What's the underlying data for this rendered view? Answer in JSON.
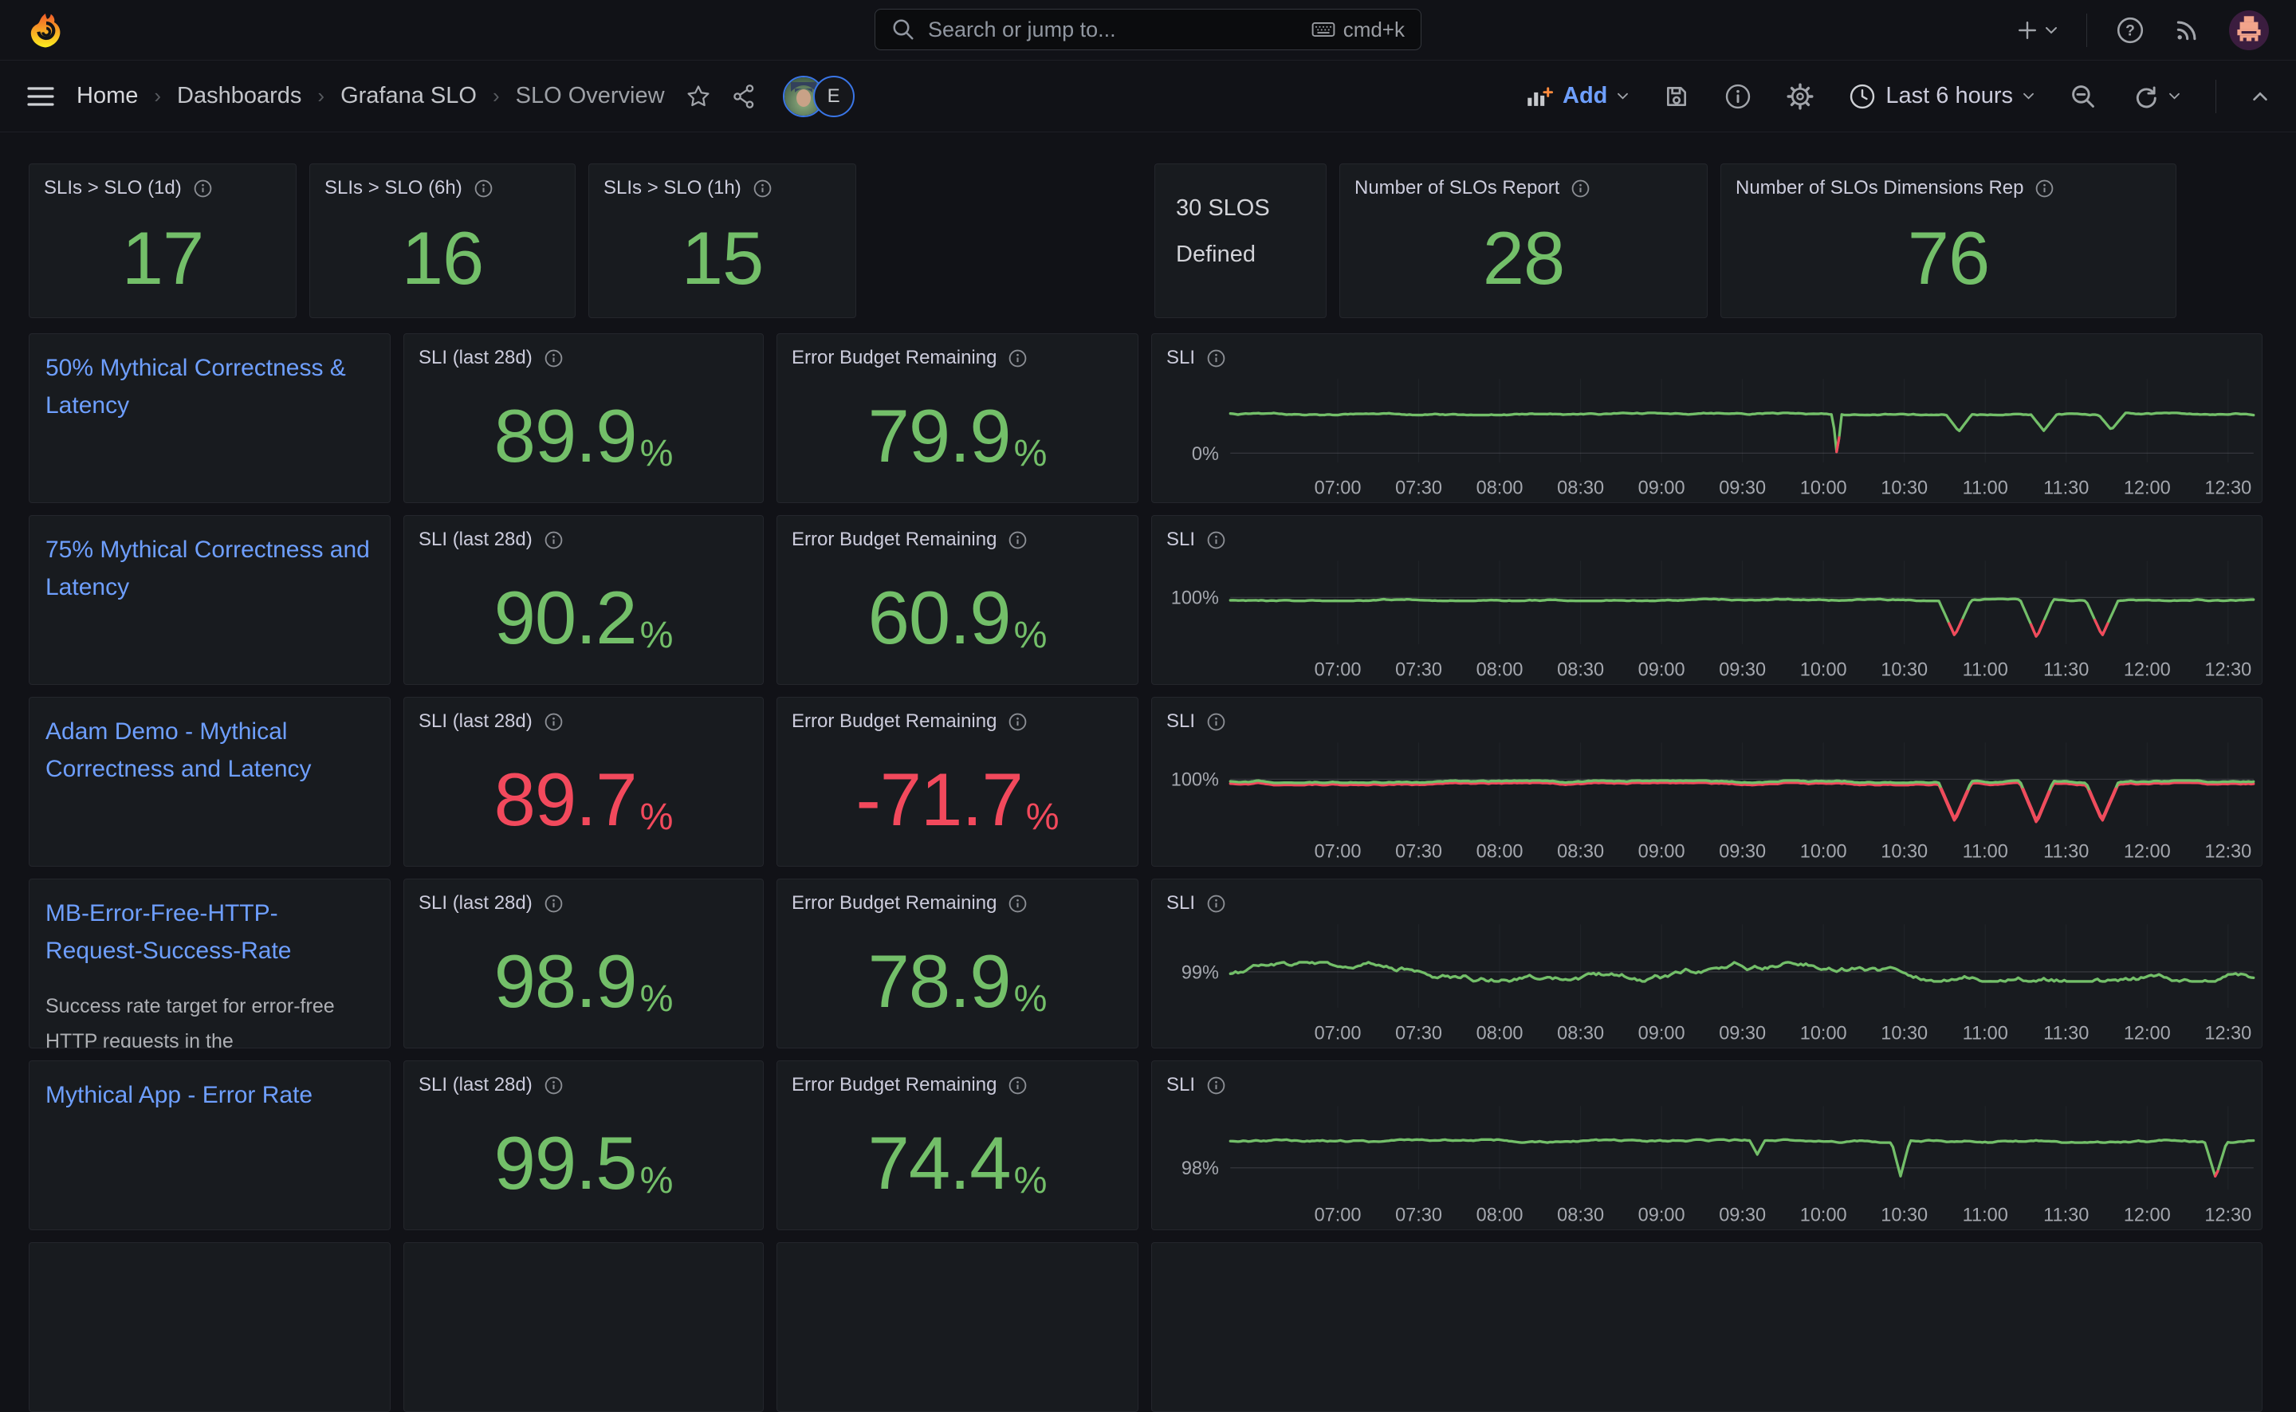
{
  "topnav": {
    "search_placeholder": "Search or jump to...",
    "search_shortcut": "cmd+k"
  },
  "breadcrumb": {
    "items": [
      "Home",
      "Dashboards",
      "Grafana SLO",
      "SLO Overview"
    ],
    "collaborator_initial": "E"
  },
  "toolbar": {
    "add_label": "Add",
    "time_range": "Last 6 hours"
  },
  "labels": {
    "sli_title": "SLI (last 28d)",
    "ebr_title": "Error Budget Remaining",
    "chart_title": "SLI",
    "unit": "%"
  },
  "colors": {
    "green": "#73BF69",
    "red": "#F2495C",
    "link": "#6E9FFF"
  },
  "stats": [
    {
      "title": "SLIs > SLO (1d)",
      "value": "17"
    },
    {
      "title": "SLIs > SLO (6h)",
      "value": "16"
    },
    {
      "title": "SLIs > SLO (1h)",
      "value": "15"
    }
  ],
  "summary": {
    "text_panel": {
      "line1": "30 SLOS",
      "line2": "Defined"
    },
    "stats": [
      {
        "title": "Number of SLOs Report",
        "value": "28"
      },
      {
        "title": "Number of SLOs Dimensions Rep",
        "value": "76"
      }
    ]
  },
  "slo_rows": [
    {
      "name": "50% Mythical Correctness & Latency",
      "description": "",
      "sli": "89.9",
      "ebr": "79.9",
      "value_color": "#73BF69"
    },
    {
      "name": "75% Mythical Correctness and Latency",
      "description": "",
      "sli": "90.2",
      "ebr": "60.9",
      "value_color": "#73BF69"
    },
    {
      "name": "Adam Demo - Mythical Correctness and Latency",
      "description": "",
      "sli": "89.7",
      "ebr": "-71.7",
      "value_color": "#F2495C"
    },
    {
      "name": "MB-Error-Free-HTTP-Request-Success-Rate",
      "description": "Success rate target for error-free HTTP requests in the",
      "sli": "98.9",
      "ebr": "78.9",
      "value_color": "#73BF69"
    },
    {
      "name": "Mythical App - Error Rate",
      "description": "",
      "sli": "99.5",
      "ebr": "74.4",
      "value_color": "#73BF69"
    }
  ],
  "chart_data": [
    {
      "type": "line",
      "title": "SLI",
      "x_ticks": [
        "07:00",
        "07:30",
        "08:00",
        "08:30",
        "09:00",
        "09:30",
        "10:00",
        "10:30",
        "11:00",
        "11:30",
        "12:00",
        "12:30"
      ],
      "y_tick": "0%",
      "y_tick_frac": 0.89,
      "baseline_frac": 0.42,
      "noise": 0.013,
      "step": 0.012,
      "red_threshold": 0.68,
      "red_under": false,
      "dips": [
        {
          "x": 0.593,
          "bottom": 0.93,
          "halfw": 0.0045
        },
        {
          "x": 0.712,
          "bottom": 0.63,
          "halfw": 0.013
        },
        {
          "x": 0.795,
          "bottom": 0.62,
          "halfw": 0.013
        },
        {
          "x": 0.861,
          "bottom": 0.61,
          "halfw": 0.013
        }
      ]
    },
    {
      "type": "line",
      "title": "SLI",
      "x_ticks": [
        "07:00",
        "07:30",
        "08:00",
        "08:30",
        "09:00",
        "09:30",
        "10:00",
        "10:30",
        "11:00",
        "11:30",
        "12:00",
        "12:30"
      ],
      "y_tick": "100%",
      "y_tick_frac": 0.44,
      "baseline_frac": 0.47,
      "noise": 0.012,
      "step": 0.011,
      "red_threshold": 0.71,
      "red_under": false,
      "dips": [
        {
          "x": 0.708,
          "bottom": 0.9,
          "halfw": 0.016
        },
        {
          "x": 0.788,
          "bottom": 0.92,
          "halfw": 0.016
        },
        {
          "x": 0.852,
          "bottom": 0.9,
          "halfw": 0.016
        }
      ]
    },
    {
      "type": "line",
      "title": "SLI",
      "x_ticks": [
        "07:00",
        "07:30",
        "08:00",
        "08:30",
        "09:00",
        "09:30",
        "10:00",
        "10:30",
        "11:00",
        "11:30",
        "12:00",
        "12:30"
      ],
      "y_tick": "100%",
      "y_tick_frac": 0.44,
      "baseline_frac": 0.47,
      "noise": 0.014,
      "step": 0.013,
      "red_threshold": 0.52,
      "red_under": true,
      "dips": [
        {
          "x": 0.708,
          "bottom": 0.92,
          "halfw": 0.016
        },
        {
          "x": 0.788,
          "bottom": 0.94,
          "halfw": 0.016
        },
        {
          "x": 0.852,
          "bottom": 0.92,
          "halfw": 0.016
        }
      ]
    },
    {
      "type": "line",
      "title": "SLI",
      "x_ticks": [
        "07:00",
        "07:30",
        "08:00",
        "08:30",
        "09:00",
        "09:30",
        "10:00",
        "10:30",
        "11:00",
        "11:30",
        "12:00",
        "12:30"
      ],
      "y_tick": "99%",
      "y_tick_frac": 0.57,
      "baseline_frac": 0.57,
      "noise": 0.115,
      "step": 0.05,
      "red_threshold": null,
      "red_under": false,
      "dips": []
    },
    {
      "type": "line",
      "title": "SLI",
      "x_ticks": [
        "07:00",
        "07:30",
        "08:00",
        "08:30",
        "09:00",
        "09:30",
        "10:00",
        "10:30",
        "11:00",
        "11:30",
        "12:00",
        "12:30"
      ],
      "y_tick": "98%",
      "y_tick_frac": 0.74,
      "baseline_frac": 0.42,
      "noise": 0.018,
      "step": 0.016,
      "red_threshold": 0.75,
      "red_under": false,
      "dips": [
        {
          "x": 0.515,
          "bottom": 0.58,
          "halfw": 0.007
        },
        {
          "x": 0.655,
          "bottom": 0.84,
          "halfw": 0.009
        },
        {
          "x": 0.963,
          "bottom": 0.86,
          "halfw": 0.011
        }
      ]
    }
  ]
}
